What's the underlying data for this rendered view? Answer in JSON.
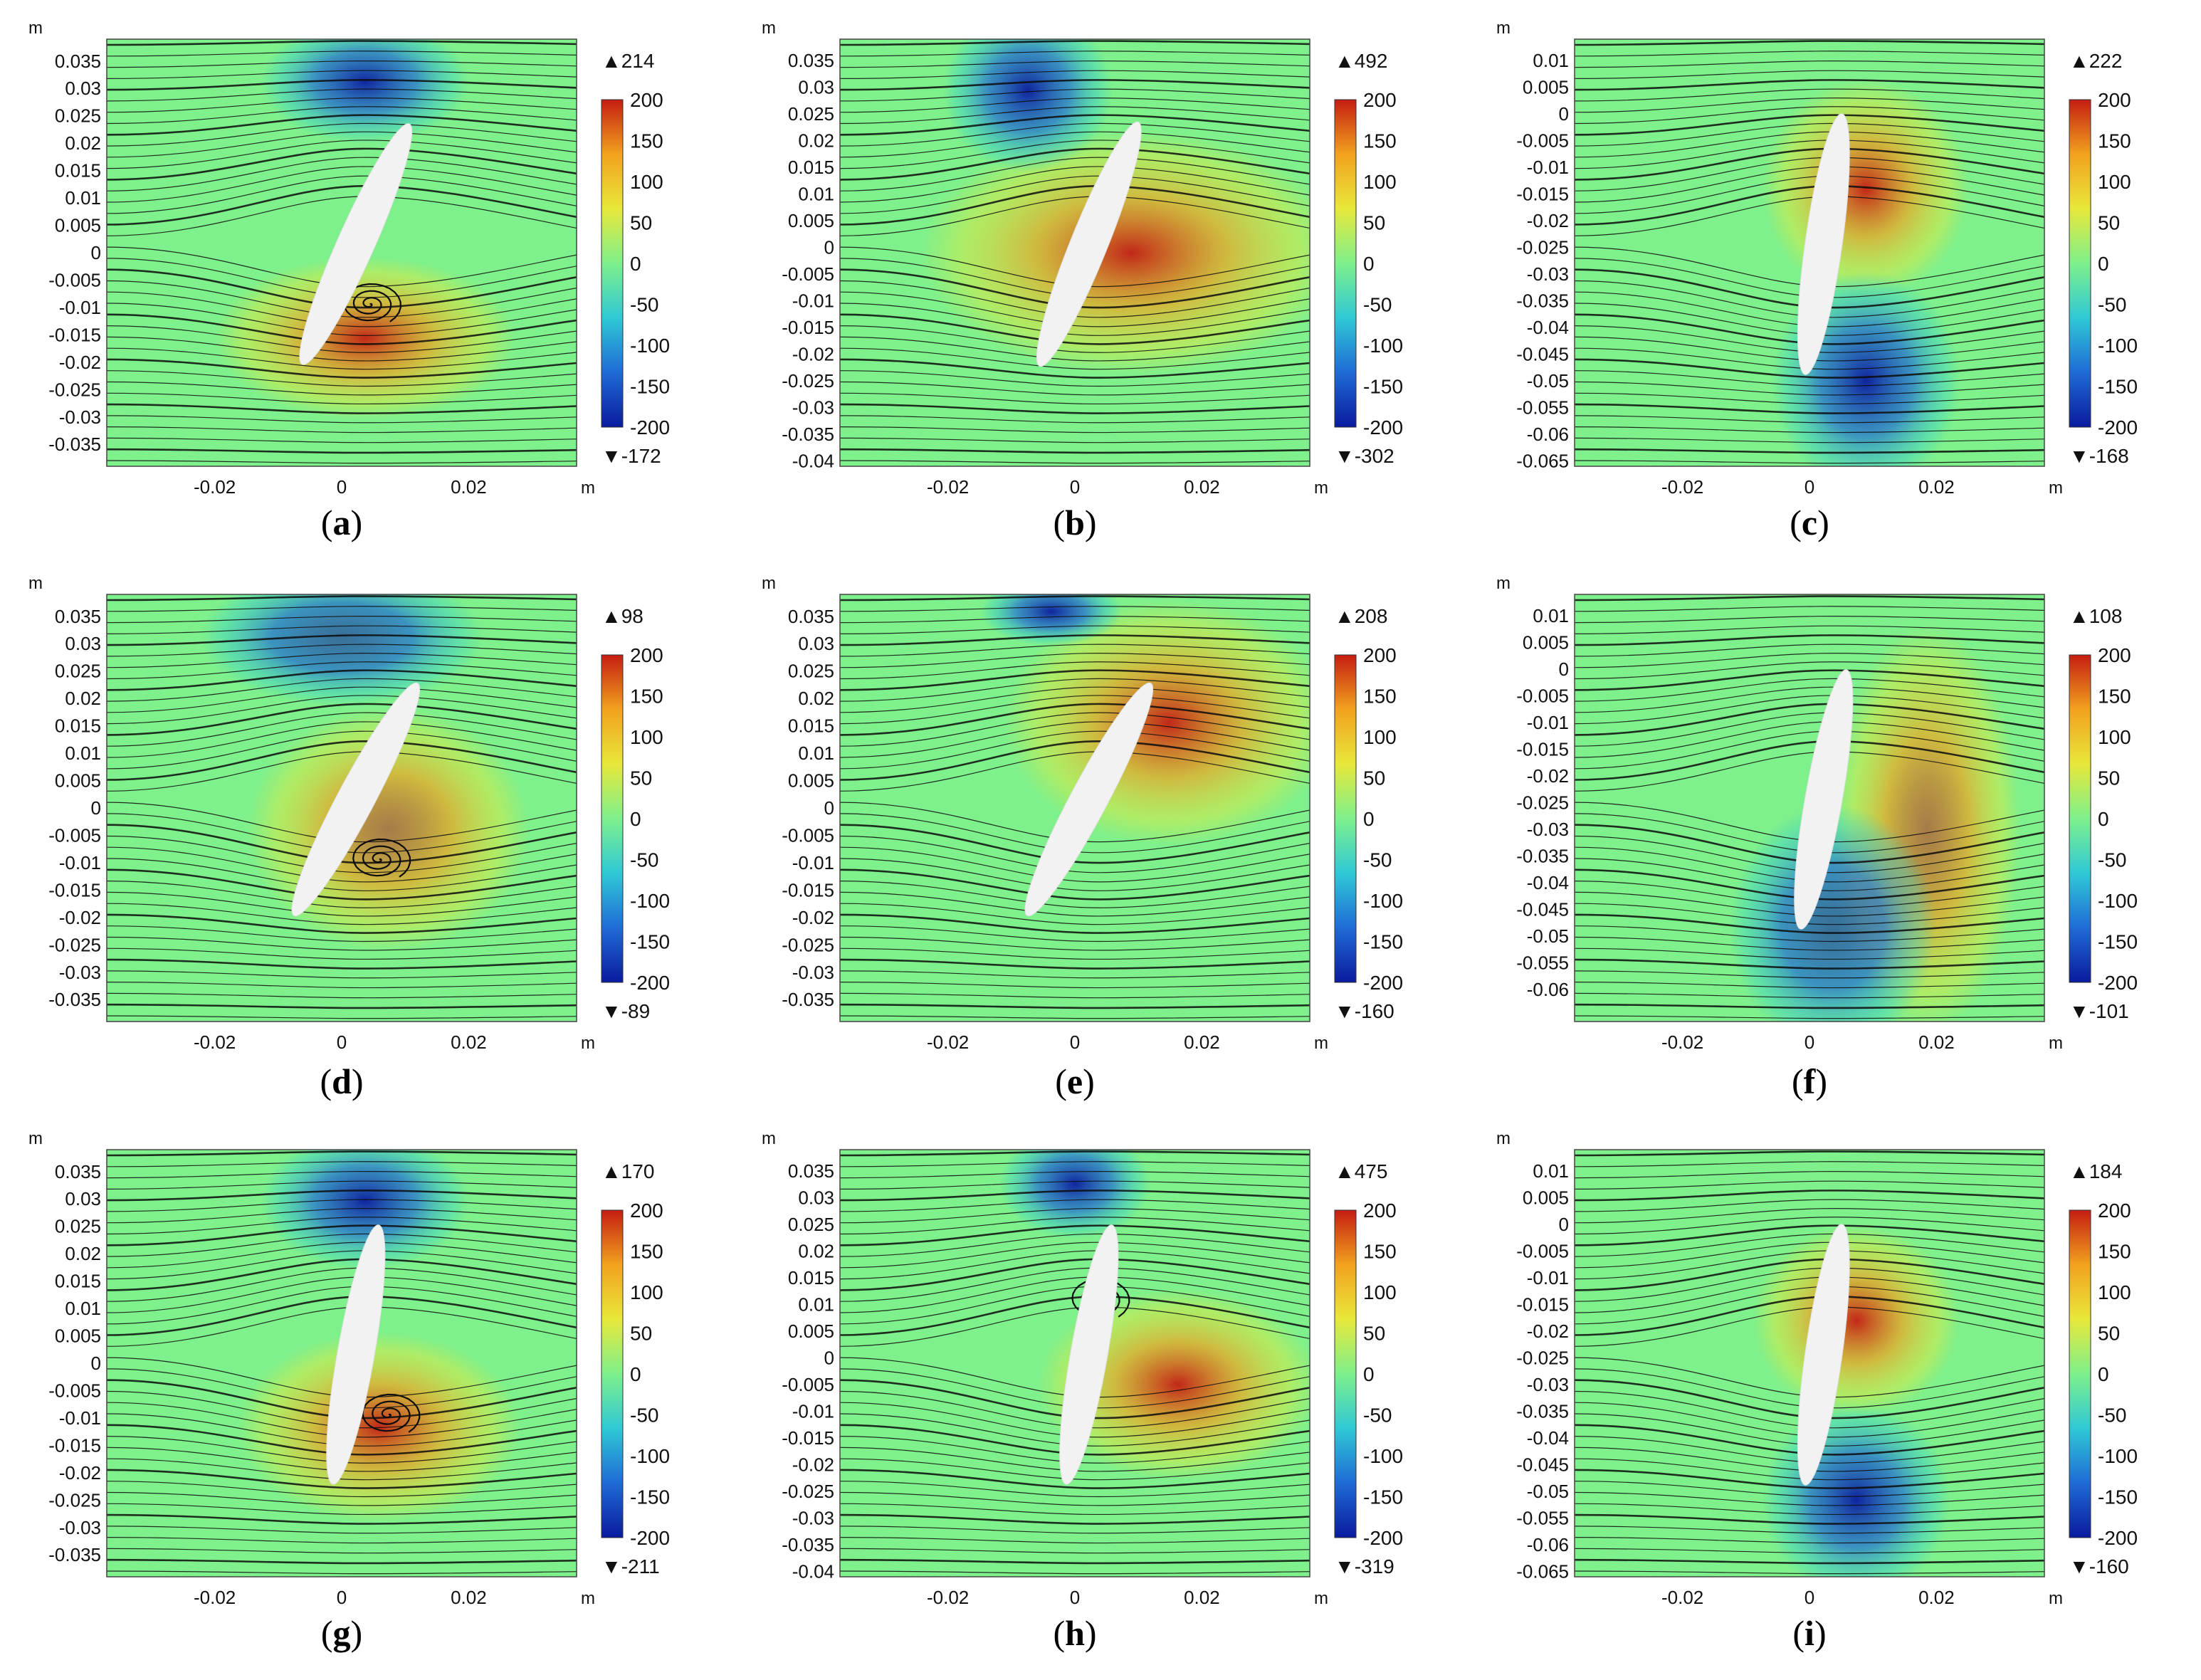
{
  "figure": {
    "panel_count": 9,
    "colormap": [
      "#0a1a9e",
      "#1f6bd6",
      "#2fc9d6",
      "#7ef08c",
      "#e8e83a",
      "#f2a21e",
      "#c51d12"
    ]
  },
  "chart_data": [
    {
      "type": "heatmap",
      "label": "a",
      "panel_order": 1,
      "xlabel": "m",
      "ylabel": "m",
      "xlim": [
        -0.037,
        0.037
      ],
      "ylim": [
        -0.039,
        0.039
      ],
      "xticks": [
        "-0.02",
        "0",
        "0.02"
      ],
      "yticks": [
        "0.035",
        "0.03",
        "0.025",
        "0.02",
        "0.015",
        "0.01",
        "0.005",
        "0",
        "-0.005",
        "-0.01",
        "-0.015",
        "-0.02",
        "-0.025",
        "-0.03",
        "-0.035"
      ],
      "colorbar": {
        "ticks": [
          "200",
          "150",
          "100",
          "50",
          "0",
          "-50",
          "-100",
          "-150",
          "-200"
        ],
        "range": [
          -200,
          200
        ],
        "max": "214",
        "min": "-172",
        "max_marker": "▲",
        "min_marker": "▼"
      }
    },
    {
      "type": "heatmap",
      "label": "b",
      "panel_order": 2,
      "xlabel": "m",
      "ylabel": "m",
      "xlim": [
        -0.037,
        0.037
      ],
      "ylim": [
        -0.041,
        0.039
      ],
      "xticks": [
        "-0.02",
        "0",
        "0.02"
      ],
      "yticks": [
        "0.035",
        "0.03",
        "0.025",
        "0.02",
        "0.015",
        "0.01",
        "0.005",
        "0",
        "-0.005",
        "-0.01",
        "-0.015",
        "-0.02",
        "-0.025",
        "-0.03",
        "-0.035",
        "-0.04"
      ],
      "colorbar": {
        "ticks": [
          "200",
          "150",
          "100",
          "50",
          "0",
          "-50",
          "-100",
          "-150",
          "-200"
        ],
        "range": [
          -200,
          200
        ],
        "max": "492",
        "min": "-302",
        "max_marker": "▲",
        "min_marker": "▼"
      }
    },
    {
      "type": "heatmap",
      "label": "c",
      "panel_order": 3,
      "xlabel": "m",
      "ylabel": "m",
      "xlim": [
        -0.037,
        0.037
      ],
      "ylim": [
        -0.066,
        0.014
      ],
      "xticks": [
        "-0.02",
        "0",
        "0.02"
      ],
      "yticks": [
        "0.01",
        "0.005",
        "0",
        "-0.005",
        "-0.01",
        "-0.015",
        "-0.02",
        "-0.025",
        "-0.03",
        "-0.035",
        "-0.04",
        "-0.045",
        "-0.05",
        "-0.055",
        "-0.06",
        "-0.065"
      ],
      "colorbar": {
        "ticks": [
          "200",
          "150",
          "100",
          "50",
          "0",
          "-50",
          "-100",
          "-150",
          "-200"
        ],
        "range": [
          -200,
          200
        ],
        "max": "222",
        "min": "-168",
        "max_marker": "▲",
        "min_marker": "▼"
      }
    },
    {
      "type": "heatmap",
      "label": "d",
      "panel_order": 4,
      "xlabel": "m",
      "ylabel": "m",
      "xlim": [
        -0.037,
        0.037
      ],
      "ylim": [
        -0.039,
        0.039
      ],
      "xticks": [
        "-0.02",
        "0",
        "0.02"
      ],
      "yticks": [
        "0.035",
        "0.03",
        "0.025",
        "0.02",
        "0.015",
        "0.01",
        "0.005",
        "0",
        "-0.005",
        "-0.01",
        "-0.015",
        "-0.02",
        "-0.025",
        "-0.03",
        "-0.035"
      ],
      "colorbar": {
        "ticks": [
          "200",
          "150",
          "100",
          "50",
          "0",
          "-50",
          "-100",
          "-150",
          "-200"
        ],
        "range": [
          -200,
          200
        ],
        "max": "98",
        "min": "-89",
        "max_marker": "▲",
        "min_marker": "▼"
      }
    },
    {
      "type": "heatmap",
      "label": "e",
      "panel_order": 5,
      "xlabel": "m",
      "ylabel": "m",
      "xlim": [
        -0.037,
        0.037
      ],
      "ylim": [
        -0.039,
        0.039
      ],
      "xticks": [
        "-0.02",
        "0",
        "0.02"
      ],
      "yticks": [
        "0.035",
        "0.03",
        "0.025",
        "0.02",
        "0.015",
        "0.01",
        "0.005",
        "0",
        "-0.005",
        "-0.01",
        "-0.015",
        "-0.02",
        "-0.025",
        "-0.03",
        "-0.035"
      ],
      "colorbar": {
        "ticks": [
          "200",
          "150",
          "100",
          "50",
          "0",
          "-50",
          "-100",
          "-150",
          "-200"
        ],
        "range": [
          -200,
          200
        ],
        "max": "208",
        "min": "-160",
        "max_marker": "▲",
        "min_marker": "▼"
      }
    },
    {
      "type": "heatmap",
      "label": "f",
      "panel_order": 6,
      "xlabel": "m",
      "ylabel": "m",
      "xlim": [
        -0.037,
        0.037
      ],
      "ylim": [
        -0.066,
        0.014
      ],
      "xticks": [
        "-0.02",
        "0",
        "0.02"
      ],
      "yticks": [
        "0.01",
        "0.005",
        "0",
        "-0.005",
        "-0.01",
        "-0.015",
        "-0.02",
        "-0.025",
        "-0.03",
        "-0.035",
        "-0.04",
        "-0.045",
        "-0.05",
        "-0.055",
        "-0.06"
      ],
      "colorbar": {
        "ticks": [
          "200",
          "150",
          "100",
          "50",
          "0",
          "-50",
          "-100",
          "-150",
          "-200"
        ],
        "range": [
          -200,
          200
        ],
        "max": "108",
        "min": "-101",
        "max_marker": "▲",
        "min_marker": "▼"
      }
    },
    {
      "type": "heatmap",
      "label": "g",
      "panel_order": 7,
      "xlabel": "m",
      "ylabel": "m",
      "xlim": [
        -0.037,
        0.037
      ],
      "ylim": [
        -0.039,
        0.039
      ],
      "xticks": [
        "-0.02",
        "0",
        "0.02"
      ],
      "yticks": [
        "0.035",
        "0.03",
        "0.025",
        "0.02",
        "0.015",
        "0.01",
        "0.005",
        "0",
        "-0.005",
        "-0.01",
        "-0.015",
        "-0.02",
        "-0.025",
        "-0.03",
        "-0.035"
      ],
      "colorbar": {
        "ticks": [
          "200",
          "150",
          "100",
          "50",
          "0",
          "-50",
          "-100",
          "-150",
          "-200"
        ],
        "range": [
          -200,
          200
        ],
        "max": "170",
        "min": "-211",
        "max_marker": "▲",
        "min_marker": "▼"
      }
    },
    {
      "type": "heatmap",
      "label": "h",
      "panel_order": 8,
      "xlabel": "m",
      "ylabel": "m",
      "xlim": [
        -0.037,
        0.037
      ],
      "ylim": [
        -0.041,
        0.039
      ],
      "xticks": [
        "-0.02",
        "0",
        "0.02"
      ],
      "yticks": [
        "0.035",
        "0.03",
        "0.025",
        "0.02",
        "0.015",
        "0.01",
        "0.005",
        "0",
        "-0.005",
        "-0.01",
        "-0.015",
        "-0.02",
        "-0.025",
        "-0.03",
        "-0.035",
        "-0.04"
      ],
      "colorbar": {
        "ticks": [
          "200",
          "150",
          "100",
          "50",
          "0",
          "-50",
          "-100",
          "-150",
          "-200"
        ],
        "range": [
          -200,
          200
        ],
        "max": "475",
        "min": "-319",
        "max_marker": "▲",
        "min_marker": "▼"
      }
    },
    {
      "type": "heatmap",
      "label": "i",
      "panel_order": 9,
      "xlabel": "m",
      "ylabel": "m",
      "xlim": [
        -0.037,
        0.037
      ],
      "ylim": [
        -0.066,
        0.014
      ],
      "xticks": [
        "-0.02",
        "0",
        "0.02"
      ],
      "yticks": [
        "0.01",
        "0.005",
        "0",
        "-0.005",
        "-0.01",
        "-0.015",
        "-0.02",
        "-0.025",
        "-0.03",
        "-0.035",
        "-0.04",
        "-0.045",
        "-0.05",
        "-0.055",
        "-0.06",
        "-0.065"
      ],
      "colorbar": {
        "ticks": [
          "200",
          "150",
          "100",
          "50",
          "0",
          "-50",
          "-100",
          "-150",
          "-200"
        ],
        "range": [
          -200,
          200
        ],
        "max": "184",
        "min": "-160",
        "max_marker": "▲",
        "min_marker": "▼"
      }
    }
  ]
}
